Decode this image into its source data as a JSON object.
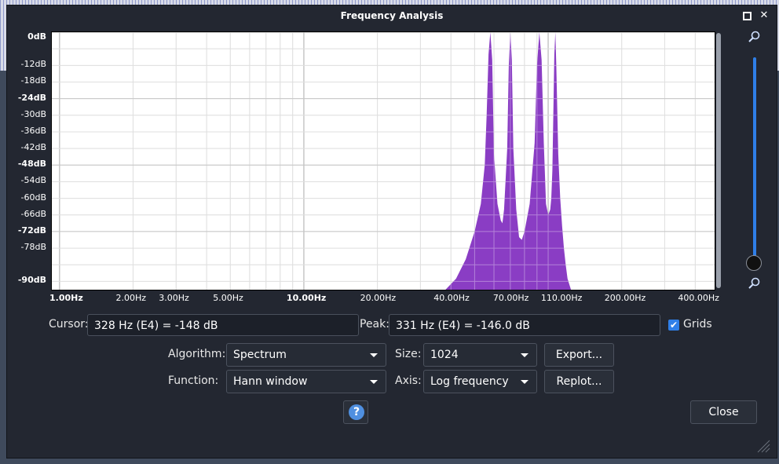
{
  "window": {
    "title": "Frequency Analysis"
  },
  "chart_data": {
    "type": "area",
    "xscale": "log",
    "y_tick_labels": [
      "0dB",
      "-12dB",
      "-18dB",
      "-24dB",
      "-30dB",
      "-36dB",
      "-42dB",
      "-48dB",
      "-54dB",
      "-60dB",
      "-66dB",
      "-72dB",
      "-78dB",
      "-90dB"
    ],
    "y_ticks_bold": [
      "0dB",
      "-24dB",
      "-48dB",
      "-72dB",
      "-90dB"
    ],
    "x_tick_labels": [
      "1.00Hz",
      "2.00Hz",
      "3.00Hz",
      "5.00Hz",
      "10.00Hz",
      "20.00Hz",
      "40.00Hz",
      "70.00Hz",
      "110.00Hz",
      "200.00Hz",
      "400.00Hz"
    ],
    "x_ticks_bold": [
      "1.00Hz",
      "10.00Hz"
    ],
    "xlim": [
      0.93,
      480
    ],
    "ylim": [
      -93,
      0
    ],
    "grid": true,
    "fill_color": "#8a3dc4",
    "series": [
      {
        "x": [
          38,
          42,
          46,
          50,
          53,
          55,
          56,
          57,
          58,
          59,
          60,
          62,
          64,
          65,
          66,
          68,
          69,
          70,
          71,
          72,
          74,
          76,
          78,
          80,
          84,
          88,
          90,
          92,
          94,
          96,
          98,
          100,
          102,
          103,
          104,
          105,
          106,
          107,
          108,
          110,
          112,
          114,
          116,
          118,
          120,
          124,
          128,
          132,
          136,
          140
        ],
        "y": [
          -93,
          -89,
          -82,
          -72,
          -62,
          -48,
          -30,
          -8,
          0,
          -10,
          -44,
          -62,
          -68,
          -69,
          -64,
          -42,
          -12,
          0,
          -10,
          -42,
          -64,
          -74,
          -75,
          -72,
          -62,
          -40,
          -12,
          0,
          -10,
          -40,
          -62,
          -66,
          -64,
          -60,
          -50,
          -30,
          -8,
          0,
          -12,
          -44,
          -60,
          -70,
          -78,
          -84,
          -89,
          -93,
          -93,
          -93,
          -93,
          -93
        ]
      }
    ]
  },
  "controls": {
    "cursor_label": "Cursor:",
    "cursor_value": "328 Hz (E4) = -148 dB",
    "peak_label": "Peak:",
    "peak_value": "331 Hz (E4) = -146.0 dB",
    "grids_label": "Grids",
    "grids_checked": true,
    "algorithm_label": "Algorithm:",
    "algorithm_value": "Spectrum",
    "size_label": "Size:",
    "size_value": "1024",
    "export_label": "Export...",
    "function_label": "Function:",
    "function_value": "Hann window",
    "axis_label": "Axis:",
    "axis_value": "Log frequency",
    "replot_label": "Replot...",
    "help_symbol": "?",
    "close_label": "Close"
  },
  "icons": {
    "maximize": "maximize-icon",
    "close": "close-icon",
    "zoom_in": "zoom-in-icon",
    "zoom_out": "zoom-out-icon",
    "help": "help-icon"
  }
}
